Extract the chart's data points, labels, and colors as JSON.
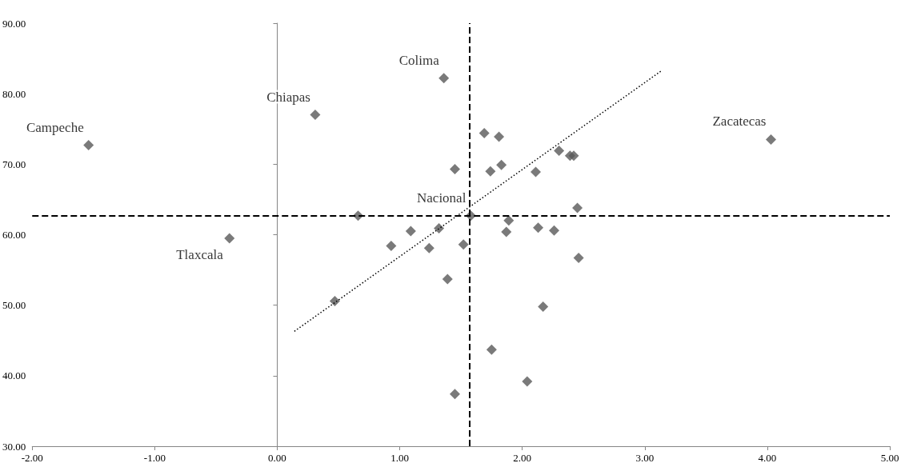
{
  "chart_data": {
    "type": "scatter",
    "marker": "diamond",
    "xlim": [
      -2,
      5
    ],
    "ylim": [
      30,
      90
    ],
    "xticks": [
      {
        "value": -2,
        "label": "-2.00"
      },
      {
        "value": -1,
        "label": "-1.00"
      },
      {
        "value": 0,
        "label": "0.00"
      },
      {
        "value": 1,
        "label": "1.00"
      },
      {
        "value": 2,
        "label": "2.00"
      },
      {
        "value": 3,
        "label": "3.00"
      },
      {
        "value": 4,
        "label": "4.00"
      },
      {
        "value": 5,
        "label": "5.00"
      }
    ],
    "yticks": [
      {
        "value": 30,
        "label": "30.00"
      },
      {
        "value": 40,
        "label": "40.00"
      },
      {
        "value": 50,
        "label": "50.00"
      },
      {
        "value": 60,
        "label": "60.00"
      },
      {
        "value": 70,
        "label": "70.00"
      },
      {
        "value": 80,
        "label": "80.00"
      },
      {
        "value": 90,
        "label": "90.00"
      }
    ],
    "series": [
      {
        "type": "scatter",
        "color": "#595959",
        "x": [
          -1.54,
          0.31,
          1.36,
          4.03,
          -0.39,
          1.58,
          1.69,
          1.81,
          2.3,
          2.39,
          2.42,
          1.45,
          1.74,
          1.83,
          2.11,
          0.66,
          2.45,
          1.89,
          1.09,
          1.32,
          1.87,
          2.13,
          2.26,
          0.93,
          1.24,
          1.52,
          2.46,
          1.39,
          0.47,
          2.17,
          1.75,
          2.04,
          1.45
        ],
        "values": [
          72.7,
          77.0,
          82.2,
          73.5,
          59.5,
          62.7,
          74.4,
          73.9,
          71.9,
          71.2,
          71.2,
          69.3,
          69.0,
          69.9,
          68.9,
          62.7,
          63.8,
          62.0,
          60.5,
          60.9,
          60.4,
          61.0,
          60.6,
          58.4,
          58.1,
          58.6,
          56.7,
          53.7,
          50.6,
          49.8,
          43.7,
          39.2,
          37.4
        ]
      },
      {
        "type": "line",
        "color": "#000000",
        "line_style": "dotted",
        "marker": "none",
        "x": [
          0.14,
          3.14
        ],
        "values": [
          46.3,
          83.3
        ]
      }
    ],
    "ref_lines": [
      {
        "axis": "x",
        "value": 1.57,
        "color": "#000000",
        "line_style": "dashed"
      },
      {
        "axis": "y",
        "value": 62.7,
        "color": "#000000",
        "line_style": "dashed"
      }
    ],
    "annotations": [
      {
        "text": "Campeche",
        "x": -1.54,
        "y": 72.7
      },
      {
        "text": "Chiapas",
        "x": 0.31,
        "y": 77.0
      },
      {
        "text": "Colima",
        "x": 1.36,
        "y": 82.2
      },
      {
        "text": "Zacatecas",
        "x": 4.03,
        "y": 73.5
      },
      {
        "text": "Tlaxcala",
        "x": -0.39,
        "y": 59.5
      },
      {
        "text": "Nacional",
        "x": 1.58,
        "y": 62.7
      }
    ]
  }
}
